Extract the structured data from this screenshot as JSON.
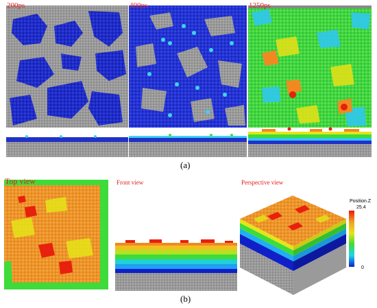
{
  "panel_a": {
    "caption": "(a)",
    "snapshots": [
      {
        "time_label": "200ps"
      },
      {
        "time_label": "400ps"
      },
      {
        "time_label": "1250ps"
      }
    ]
  },
  "panel_b": {
    "caption": "(b)",
    "views": [
      {
        "label": "Top view"
      },
      {
        "label": "Front view"
      },
      {
        "label": "Perspective view"
      }
    ]
  },
  "colorbar": {
    "title": "Position.Z",
    "max": "25.4",
    "min": "0",
    "colors": [
      "#e81b0d",
      "#f0a020",
      "#e6e418",
      "#3ddc3a",
      "#1fd2f0",
      "#1020c8"
    ]
  }
}
